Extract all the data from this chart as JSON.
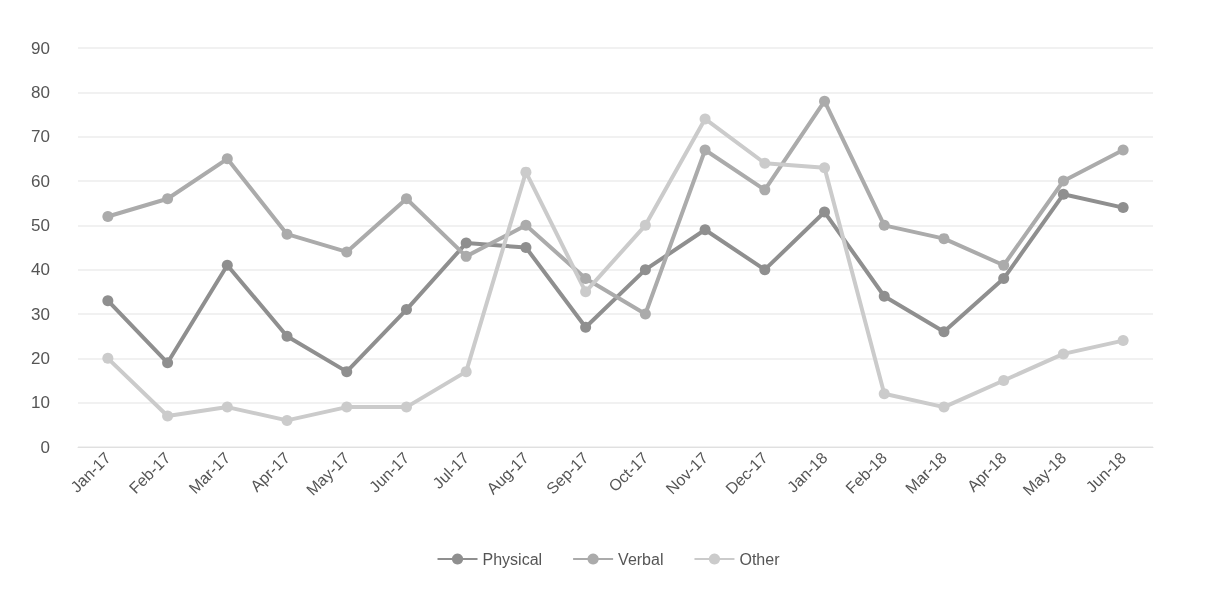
{
  "chart_data": {
    "type": "line",
    "categories": [
      "Jan-17",
      "Feb-17",
      "Mar-17",
      "Apr-17",
      "May-17",
      "Jun-17",
      "Jul-17",
      "Aug-17",
      "Sep-17",
      "Oct-17",
      "Nov-17",
      "Dec-17",
      "Jan-18",
      "Feb-18",
      "Mar-18",
      "Apr-18",
      "May-18",
      "Jun-18"
    ],
    "series": [
      {
        "name": "Physical",
        "color": "#8f8f8f",
        "values": [
          33,
          19,
          41,
          25,
          17,
          31,
          46,
          45,
          27,
          40,
          49,
          40,
          53,
          34,
          26,
          38,
          57,
          54
        ]
      },
      {
        "name": "Verbal",
        "color": "#ababab",
        "values": [
          52,
          56,
          65,
          48,
          44,
          56,
          43,
          50,
          38,
          30,
          67,
          58,
          78,
          50,
          47,
          41,
          60,
          67
        ]
      },
      {
        "name": "Other",
        "color": "#cbcbcb",
        "values": [
          20,
          7,
          9,
          6,
          9,
          9,
          17,
          62,
          35,
          50,
          74,
          64,
          63,
          12,
          9,
          15,
          21,
          24
        ]
      }
    ],
    "ylim": [
      0,
      90
    ],
    "yticks": [
      0,
      10,
      20,
      30,
      40,
      50,
      60,
      70,
      80,
      90
    ],
    "grid": "y",
    "legend": "bottom",
    "marker": "circle",
    "line_style": "solid"
  }
}
